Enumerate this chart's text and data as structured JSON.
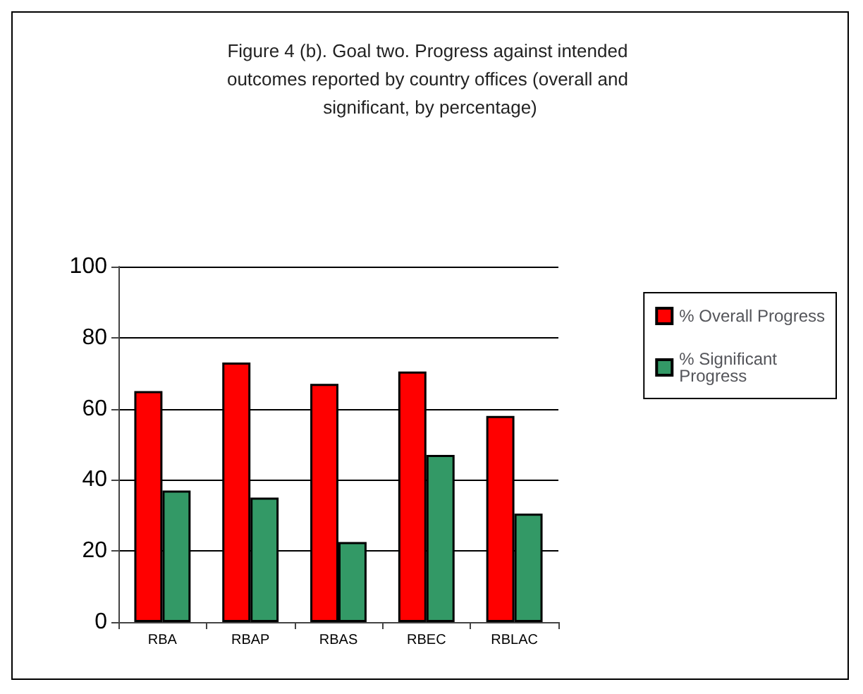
{
  "chart_data": {
    "type": "bar",
    "title": "Figure 4 (b). Goal two. Progress against intended outcomes reported by country offices (overall and significant, by percentage)",
    "categories": [
      "RBA",
      "RBAP",
      "RBAS",
      "RBEC",
      "RBLAC"
    ],
    "series": [
      {
        "name": "% Overall Progress",
        "color": "#ff0000",
        "values": [
          65,
          73,
          67,
          70.5,
          58
        ]
      },
      {
        "name": "% Significant Progress",
        "color": "#339966",
        "values": [
          37,
          35,
          22.5,
          47,
          30.5
        ]
      }
    ],
    "ylim": [
      0,
      100
    ],
    "yticks": [
      0,
      20,
      40,
      60,
      80,
      100
    ],
    "grid": "y",
    "legend": "right"
  }
}
